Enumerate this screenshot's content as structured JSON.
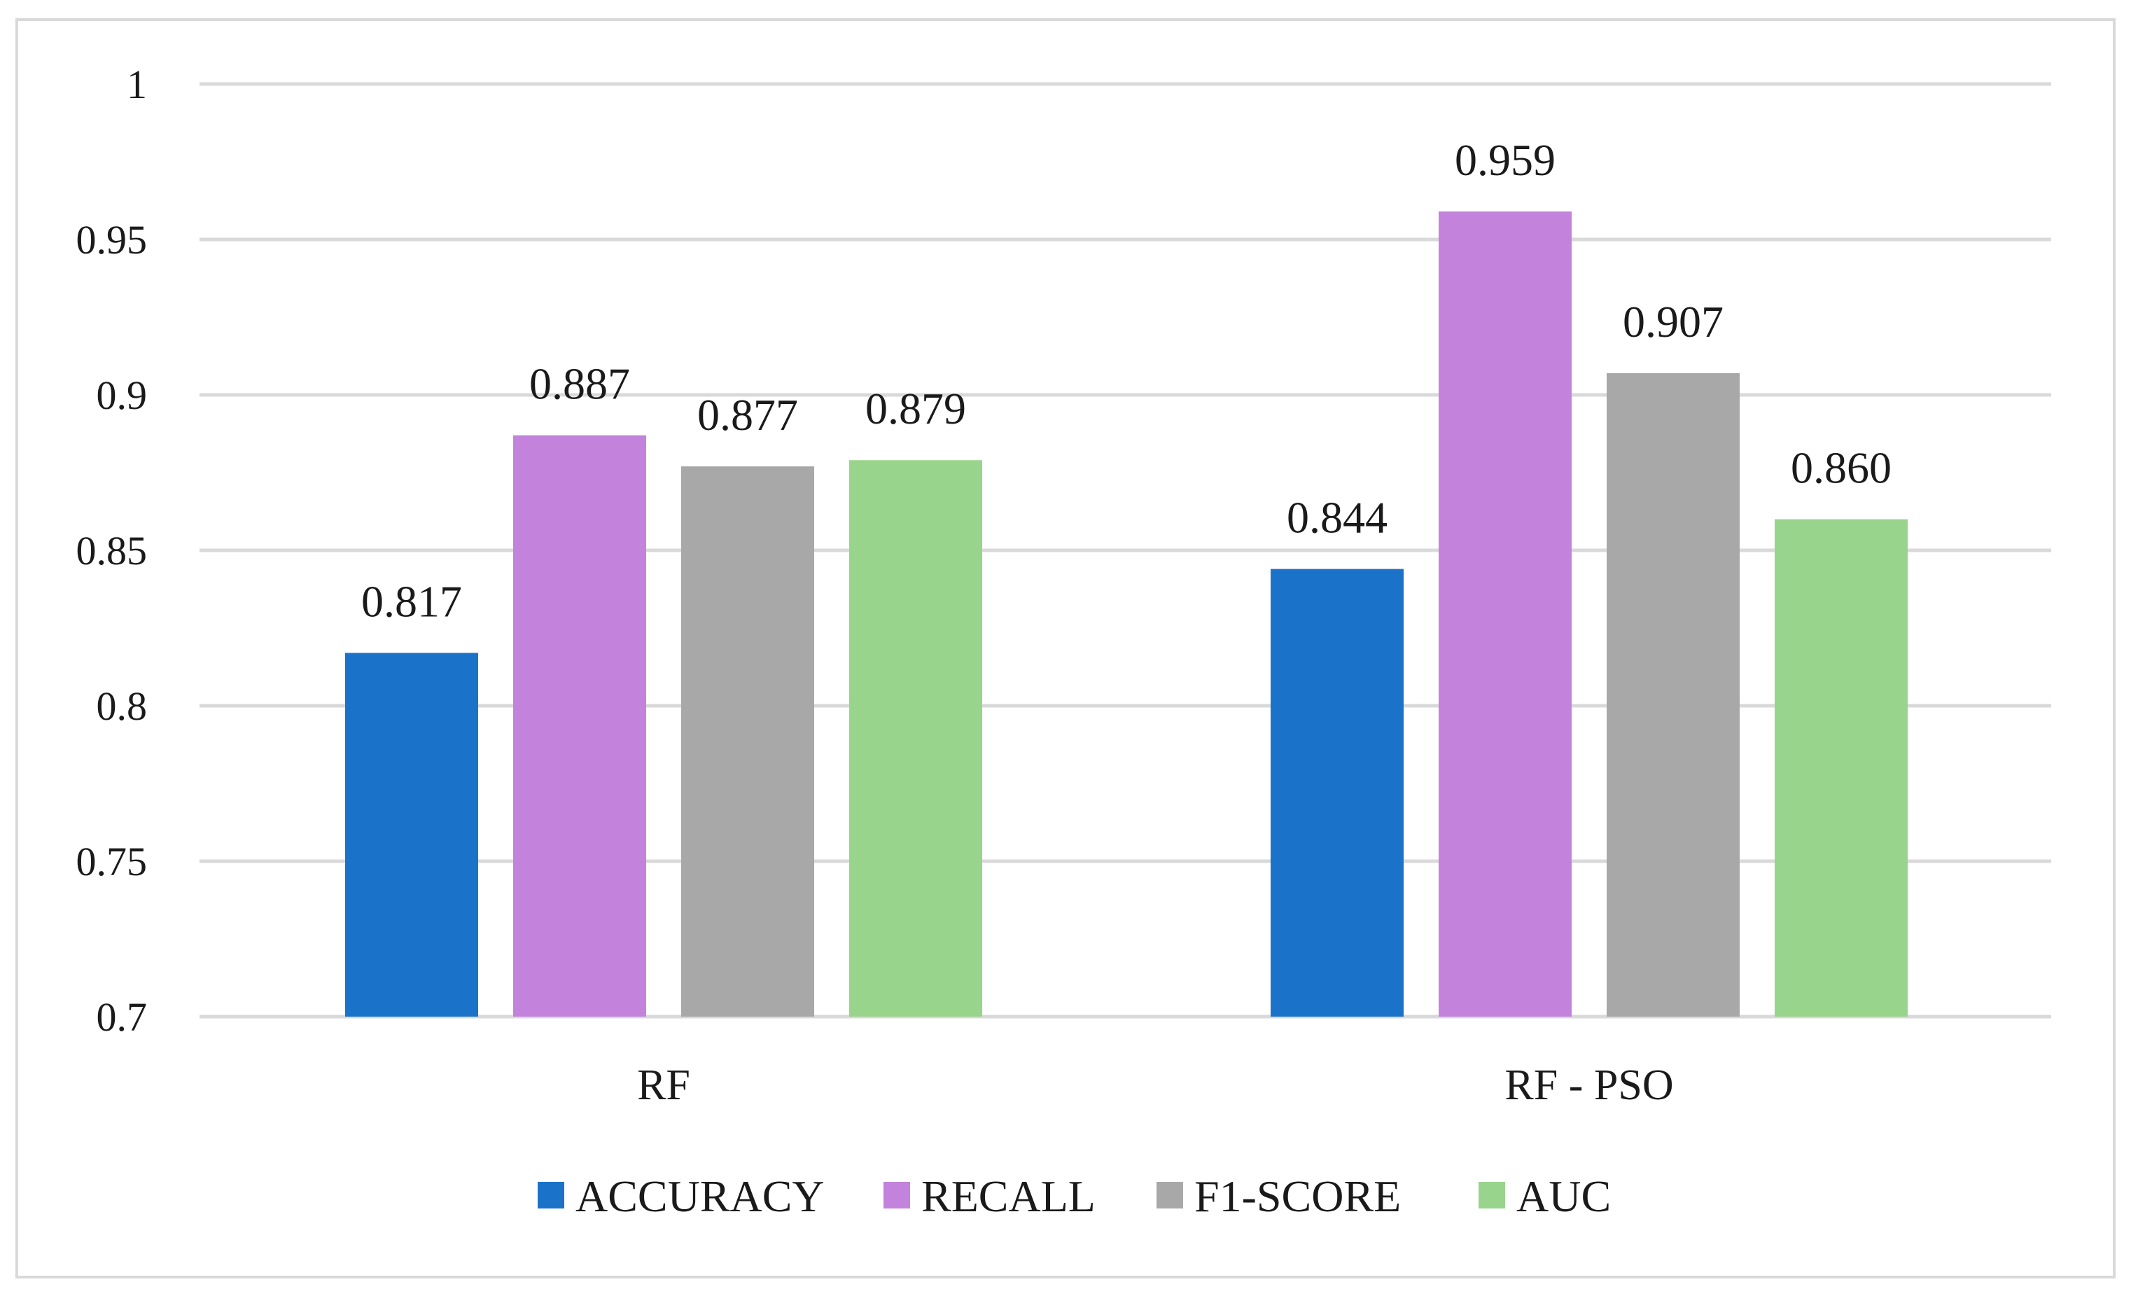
{
  "chart_data": {
    "type": "bar",
    "title": "",
    "xlabel": "",
    "ylabel": "",
    "categories": [
      "RF",
      "RF - PSO"
    ],
    "ylim": [
      0.7,
      1
    ],
    "yticks": [
      0.7,
      0.75,
      0.8,
      0.85,
      0.9,
      0.95,
      1
    ],
    "ytick_labels": [
      "0.7",
      "0.75",
      "0.8",
      "0.85",
      "0.9",
      "0.95",
      "1"
    ],
    "grid": true,
    "legend_position": "bottom",
    "series": [
      {
        "name": "ACCURACY",
        "color": "#1a73c8",
        "values": [
          0.817,
          0.844
        ],
        "labels": [
          "0.817",
          "0.844"
        ]
      },
      {
        "name": "RECALL",
        "color": "#c383dc",
        "values": [
          0.887,
          0.959
        ],
        "labels": [
          "0.887",
          "0.959"
        ]
      },
      {
        "name": "F1-SCORE",
        "color": "#a8a8a8",
        "values": [
          0.877,
          0.907
        ],
        "labels": [
          "0.877",
          "0.907"
        ]
      },
      {
        "name": "AUC",
        "color": "#99d48c",
        "values": [
          0.879,
          0.86
        ],
        "labels": [
          "0.879",
          "0.860"
        ]
      }
    ]
  }
}
